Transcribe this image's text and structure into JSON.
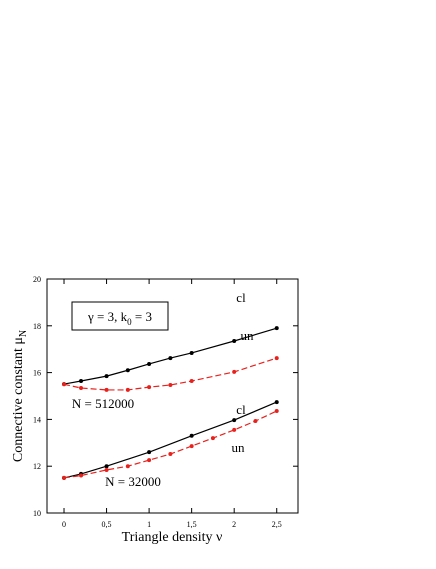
{
  "chart_data": {
    "type": "line",
    "xlabel": "Triangle density  ν",
    "ylabel": [
      "Connective constant  μ",
      "N"
    ],
    "box_text": [
      "γ = 3,  k",
      "0",
      " = 3"
    ],
    "xlim": [
      -0.2,
      2.75
    ],
    "ylim": [
      10,
      20
    ],
    "xticks": [
      {
        "value": 0,
        "label": "0"
      },
      {
        "value": 0.5,
        "label": "0,5"
      },
      {
        "value": 1,
        "label": "1"
      },
      {
        "value": 1.5,
        "label": "1,5"
      },
      {
        "value": 2,
        "label": "2"
      },
      {
        "value": 2.5,
        "label": "2,5"
      }
    ],
    "yticks": [
      10,
      12,
      14,
      16,
      18,
      20
    ],
    "groups": [
      {
        "label": "N = 512000",
        "series": [
          {
            "name": "cl",
            "color": "#000000",
            "dashed": false,
            "x": [
              0,
              0.2,
              0.5,
              0.75,
              1,
              1.25,
              1.5,
              2,
              2.5
            ],
            "values": [
              15.51,
              15.64,
              15.85,
              16.1,
              16.37,
              16.62,
              16.84,
              17.35,
              17.9
            ]
          },
          {
            "name": "un",
            "color": "#e8211c",
            "dashed": true,
            "x": [
              0,
              0.2,
              0.5,
              0.75,
              1,
              1.25,
              1.5,
              2,
              2.5
            ],
            "values": [
              15.5,
              15.34,
              15.26,
              15.26,
              15.38,
              15.47,
              15.64,
              16.03,
              16.62
            ]
          }
        ]
      },
      {
        "label": "N = 32000",
        "series": [
          {
            "name": "cl",
            "color": "#000000",
            "dashed": false,
            "x": [
              0,
              0.2,
              0.5,
              1,
              1.5,
              2,
              2.5
            ],
            "values": [
              11.5,
              11.67,
              12.0,
              12.6,
              13.3,
              13.97,
              14.74
            ]
          },
          {
            "name": "un",
            "color": "#e8211c",
            "dashed": true,
            "x": [
              0,
              0.2,
              0.5,
              0.75,
              1,
              1.25,
              1.5,
              1.75,
              2,
              2.25,
              2.5
            ],
            "values": [
              11.5,
              11.6,
              11.84,
              12.0,
              12.26,
              12.52,
              12.86,
              13.2,
              13.55,
              13.93,
              14.36
            ]
          }
        ]
      }
    ]
  }
}
